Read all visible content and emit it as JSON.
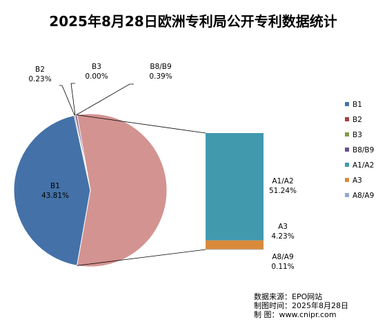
{
  "chart_data": {
    "type": "pie",
    "title": "2025年8月28日欧洲专利局公开专利数据统计",
    "series": [
      {
        "name": "B1",
        "value": 43.81,
        "label": "43.81%",
        "color": "#4472A8"
      },
      {
        "name": "B2",
        "value": 0.23,
        "label": "0.23%",
        "color": "#A5403D"
      },
      {
        "name": "B3",
        "value": 0.0,
        "label": "0.00%",
        "color": "#7F9A48"
      },
      {
        "name": "B8/B9",
        "value": 0.39,
        "label": "0.39%",
        "color": "#69508A"
      },
      {
        "name": "A1/A2",
        "value": 51.24,
        "label": "51.24%",
        "color": "#4199AE"
      },
      {
        "name": "A3",
        "value": 4.23,
        "label": "4.23%",
        "color": "#DA8A3B"
      },
      {
        "name": "A8/A9",
        "value": 0.11,
        "label": "0.11%",
        "color": "#93A9CF"
      }
    ],
    "secondary": {
      "type": "bar-of-pie",
      "members": [
        "A1/A2",
        "A3",
        "A8/A9"
      ],
      "main_slice_color": "#D39391"
    },
    "legend_position": "right"
  },
  "source": {
    "line1": "数据来源：EPO网站",
    "line2": "制图时间：2025年8月28日",
    "line3": "制    图：www.cnipr.com"
  }
}
